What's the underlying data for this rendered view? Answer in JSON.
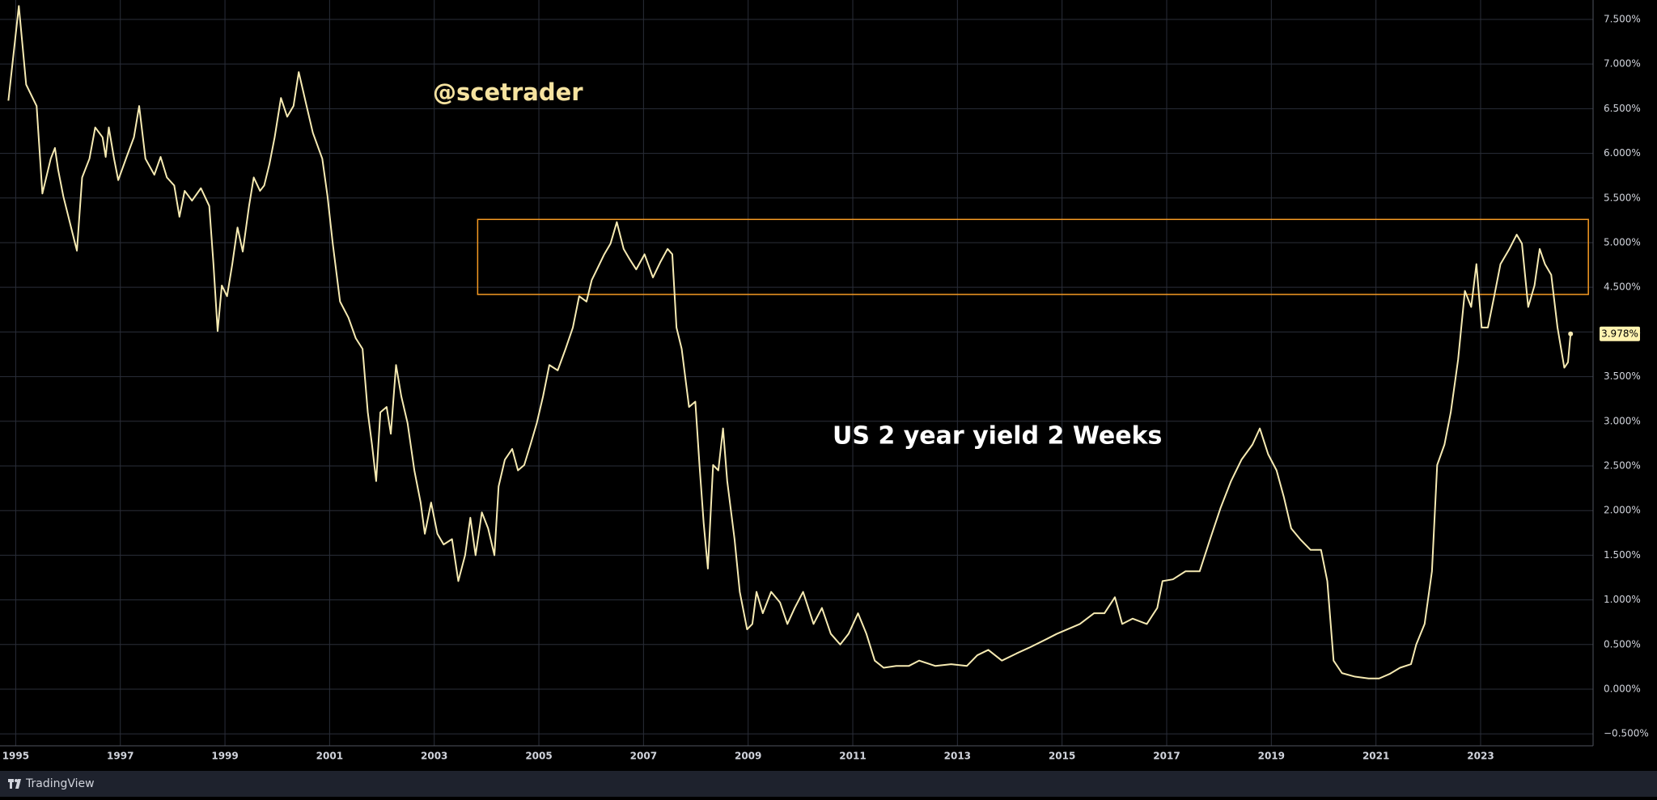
{
  "chart_data": {
    "type": "line",
    "title": "US 2 year yield 2 Weeks",
    "watermark": "@scetrader",
    "brand": "TradingView",
    "x": [
      1994.86,
      1995.06,
      1995.2,
      1995.4,
      1995.51,
      1995.67,
      1995.75,
      1995.81,
      1995.91,
      1996.11,
      1996.17,
      1996.27,
      1996.41,
      1996.52,
      1996.66,
      1996.72,
      1996.78,
      1996.88,
      1996.96,
      1997.12,
      1997.26,
      1997.36,
      1997.48,
      1997.65,
      1997.77,
      1997.89,
      1998.03,
      1998.13,
      1998.23,
      1998.37,
      1998.54,
      1998.7,
      1998.78,
      1998.86,
      1998.94,
      1999.04,
      1999.14,
      1999.24,
      1999.34,
      1999.46,
      1999.55,
      1999.67,
      1999.75,
      1999.85,
      1999.95,
      2000.07,
      2000.19,
      2000.31,
      2000.41,
      2000.56,
      2000.68,
      2000.86,
      2000.96,
      2001.06,
      2001.2,
      2001.36,
      2001.5,
      2001.63,
      2001.73,
      2001.81,
      2001.89,
      2001.97,
      2002.09,
      2002.17,
      2002.27,
      2002.37,
      2002.49,
      2002.62,
      2002.74,
      2002.82,
      2002.94,
      2003.06,
      2003.18,
      2003.34,
      2003.46,
      2003.59,
      2003.69,
      2003.79,
      2003.91,
      2004.03,
      2004.15,
      2004.23,
      2004.35,
      2004.49,
      2004.6,
      2004.72,
      2004.84,
      2004.96,
      2005.08,
      2005.2,
      2005.36,
      2005.51,
      2005.65,
      2005.77,
      2005.91,
      2006.01,
      2006.11,
      2006.25,
      2006.37,
      2006.49,
      2006.62,
      2006.74,
      2006.86,
      2007.02,
      2007.18,
      2007.32,
      2007.46,
      2007.55,
      2007.63,
      2007.73,
      2007.87,
      2007.99,
      2008.07,
      2008.15,
      2008.23,
      2008.33,
      2008.43,
      2008.52,
      2008.6,
      2008.74,
      2008.84,
      2008.98,
      2009.08,
      2009.16,
      2009.28,
      2009.44,
      2009.61,
      2009.75,
      2009.89,
      2010.05,
      2010.25,
      2010.41,
      2010.58,
      2010.76,
      2010.92,
      2011.1,
      2011.26,
      2011.42,
      2011.59,
      2011.83,
      2012.07,
      2012.27,
      2012.58,
      2012.88,
      2013.18,
      2013.38,
      2013.59,
      2013.85,
      2014.13,
      2014.39,
      2014.7,
      2014.9,
      2015.1,
      2015.34,
      2015.61,
      2015.81,
      2016.01,
      2016.15,
      2016.35,
      2016.62,
      2016.82,
      2016.92,
      2017.12,
      2017.36,
      2017.63,
      2017.83,
      2018.03,
      2018.23,
      2018.43,
      2018.64,
      2018.78,
      2018.94,
      2019.1,
      2019.24,
      2019.38,
      2019.55,
      2019.75,
      2019.95,
      2020.07,
      2020.19,
      2020.35,
      2020.6,
      2020.86,
      2021.06,
      2021.26,
      2021.46,
      2021.67,
      2021.77,
      2021.93,
      2022.07,
      2022.17,
      2022.31,
      2022.43,
      2022.57,
      2022.7,
      2022.82,
      2022.92,
      2023.02,
      2023.14,
      2023.26,
      2023.38,
      2023.55,
      2023.69,
      2023.79,
      2023.91,
      2024.03,
      2024.13,
      2024.23,
      2024.35,
      2024.47,
      2024.6,
      2024.67,
      2024.72
    ],
    "series": [
      {
        "name": "US 2 year yield",
        "color": "#f6eab2",
        "values": [
          6.59,
          7.65,
          6.77,
          6.53,
          5.55,
          5.94,
          6.06,
          5.82,
          5.52,
          5.05,
          4.91,
          5.73,
          5.94,
          6.29,
          6.18,
          5.96,
          6.29,
          5.94,
          5.7,
          5.96,
          6.18,
          6.53,
          5.94,
          5.76,
          5.96,
          5.73,
          5.64,
          5.29,
          5.58,
          5.47,
          5.61,
          5.41,
          4.76,
          4.01,
          4.52,
          4.4,
          4.76,
          5.17,
          4.9,
          5.41,
          5.73,
          5.58,
          5.64,
          5.88,
          6.18,
          6.62,
          6.41,
          6.53,
          6.91,
          6.53,
          6.23,
          5.94,
          5.52,
          4.99,
          4.34,
          4.16,
          3.93,
          3.81,
          3.1,
          2.74,
          2.33,
          3.1,
          3.16,
          2.86,
          3.63,
          3.28,
          2.98,
          2.45,
          2.09,
          1.74,
          2.09,
          1.74,
          1.62,
          1.68,
          1.21,
          1.5,
          1.92,
          1.5,
          1.98,
          1.8,
          1.5,
          2.27,
          2.57,
          2.69,
          2.45,
          2.51,
          2.74,
          2.98,
          3.28,
          3.63,
          3.57,
          3.81,
          4.05,
          4.4,
          4.34,
          4.58,
          4.7,
          4.87,
          4.99,
          5.23,
          4.93,
          4.81,
          4.7,
          4.87,
          4.61,
          4.78,
          4.93,
          4.87,
          4.05,
          3.81,
          3.16,
          3.22,
          2.51,
          1.86,
          1.35,
          2.51,
          2.45,
          2.92,
          2.33,
          1.68,
          1.09,
          0.67,
          0.73,
          1.09,
          0.85,
          1.09,
          0.97,
          0.73,
          0.91,
          1.09,
          0.73,
          0.91,
          0.62,
          0.5,
          0.62,
          0.85,
          0.62,
          0.32,
          0.24,
          0.26,
          0.26,
          0.32,
          0.26,
          0.28,
          0.26,
          0.38,
          0.44,
          0.32,
          0.4,
          0.47,
          0.56,
          0.62,
          0.67,
          0.73,
          0.85,
          0.85,
          1.03,
          0.73,
          0.79,
          0.73,
          0.91,
          1.21,
          1.23,
          1.32,
          1.32,
          1.68,
          2.03,
          2.33,
          2.57,
          2.74,
          2.92,
          2.63,
          2.45,
          2.15,
          1.8,
          1.68,
          1.56,
          1.56,
          1.21,
          0.32,
          0.18,
          0.14,
          0.12,
          0.12,
          0.17,
          0.24,
          0.28,
          0.5,
          0.73,
          1.32,
          2.51,
          2.74,
          3.1,
          3.69,
          4.46,
          4.28,
          4.76,
          4.05,
          4.05,
          4.4,
          4.76,
          4.93,
          5.09,
          4.99,
          4.28,
          4.52,
          4.93,
          4.76,
          4.64,
          4.05,
          3.6,
          3.66,
          3.978
        ]
      }
    ],
    "last_label": {
      "value": 3.978,
      "label": "3.978%"
    },
    "highlight": {
      "x": [
        2003.83,
        2025.06
      ],
      "y": [
        4.42,
        5.26
      ],
      "color": "#f59a23"
    },
    "xlim": [
      1994.7,
      2025.15
    ],
    "xticks": [
      1995,
      1997,
      1999,
      2001,
      2003,
      2005,
      2007,
      2009,
      2011,
      2013,
      2015,
      2017,
      2019,
      2021,
      2023
    ],
    "ylim": [
      -0.634,
      7.717
    ],
    "yticks": [
      {
        "value": -0.5,
        "label": "−0.500%"
      },
      {
        "value": 0,
        "label": "0.000%"
      },
      {
        "value": 0.5,
        "label": "0.500%"
      },
      {
        "value": 1,
        "label": "1.000%"
      },
      {
        "value": 1.5,
        "label": "1.500%"
      },
      {
        "value": 2,
        "label": "2.000%"
      },
      {
        "value": 2.5,
        "label": "2.500%"
      },
      {
        "value": 3,
        "label": "3.000%"
      },
      {
        "value": 3.5,
        "label": "3.500%"
      },
      {
        "value": 4,
        "label": "4.000%"
      },
      {
        "value": 4.5,
        "label": "4.500%"
      },
      {
        "value": 5,
        "label": "5.000%"
      },
      {
        "value": 5.5,
        "label": "5.500%"
      },
      {
        "value": 6,
        "label": "6.000%"
      },
      {
        "value": 6.5,
        "label": "6.500%"
      },
      {
        "value": 7,
        "label": "7.000%"
      },
      {
        "value": 7.5,
        "label": "7.500%"
      }
    ],
    "grid": true
  }
}
